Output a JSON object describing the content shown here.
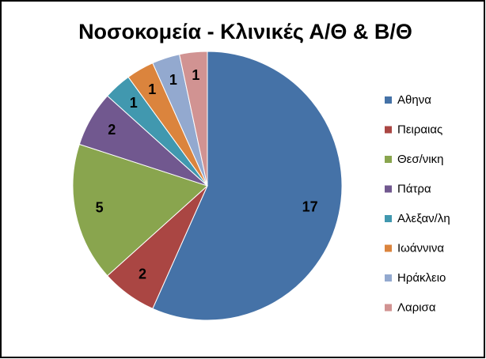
{
  "chart_data": {
    "type": "pie",
    "title": "Νοσοκομεία - Κλινικές Α/Θ & Β/Θ",
    "categories": [
      "Αθηνα",
      "Πειραιας",
      "Θεσ/νικη",
      "Πάτρα",
      "Αλεξαν/λη",
      "Ιωάννινα",
      "Ηράκλειο",
      "Λαρισα"
    ],
    "values": [
      17,
      2,
      5,
      2,
      1,
      1,
      1,
      1
    ],
    "colors": [
      "#4572a7",
      "#aa4643",
      "#89a54e",
      "#71588f",
      "#4198af",
      "#db843d",
      "#93a9cf",
      "#d19392"
    ],
    "legend": "right"
  }
}
